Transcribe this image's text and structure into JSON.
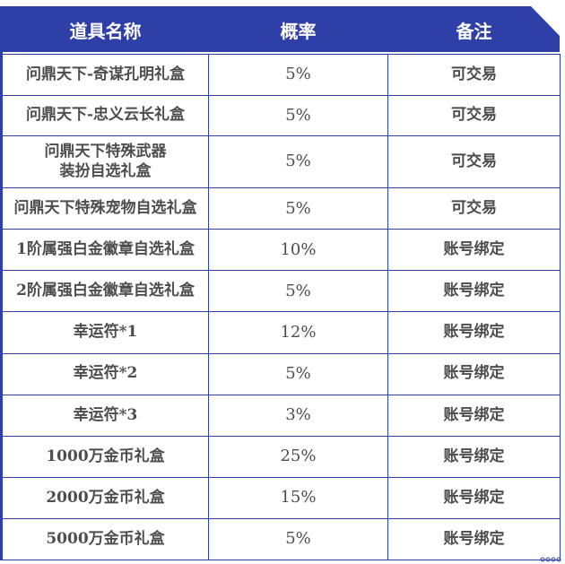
{
  "table": {
    "headers": [
      "道具名称",
      "概率",
      "备注"
    ],
    "rows": [
      {
        "name": "问鼎天下-奇谋孔明礼盒",
        "rate": "5%",
        "note": "可交易"
      },
      {
        "name": "问鼎天下-忠义云长礼盒",
        "rate": "5%",
        "note": "可交易"
      },
      {
        "name": "问鼎天下特殊武器装扮自选礼盒",
        "rate": "5%",
        "note": "可交易"
      },
      {
        "name": "问鼎天下特殊宠物自选礼盒",
        "rate": "5%",
        "note": "可交易"
      },
      {
        "name": "1阶属强白金徽章自选礼盒",
        "rate": "10%",
        "note": "账号绑定"
      },
      {
        "name": "2阶属强白金徽章自选礼盒",
        "rate": "5%",
        "note": "账号绑定"
      },
      {
        "name": "幸运符*1",
        "rate": "12%",
        "note": "账号绑定"
      },
      {
        "name": "幸运符*2",
        "rate": "5%",
        "note": "账号绑定"
      },
      {
        "name": "幸运符*3",
        "rate": "3%",
        "note": "账号绑定"
      },
      {
        "name": "1000万金币礼盒",
        "rate": "25%",
        "note": "账号绑定"
      },
      {
        "name": "2000万金币礼盒",
        "rate": "15%",
        "note": "账号绑定"
      },
      {
        "name": "5000万金币礼盒",
        "rate": "5%",
        "note": "账号绑定"
      }
    ]
  },
  "colors": {
    "header_blue": "#2f3fa8",
    "border_blue": "#2f3fa8",
    "text_gray": "#4d4d4d"
  }
}
